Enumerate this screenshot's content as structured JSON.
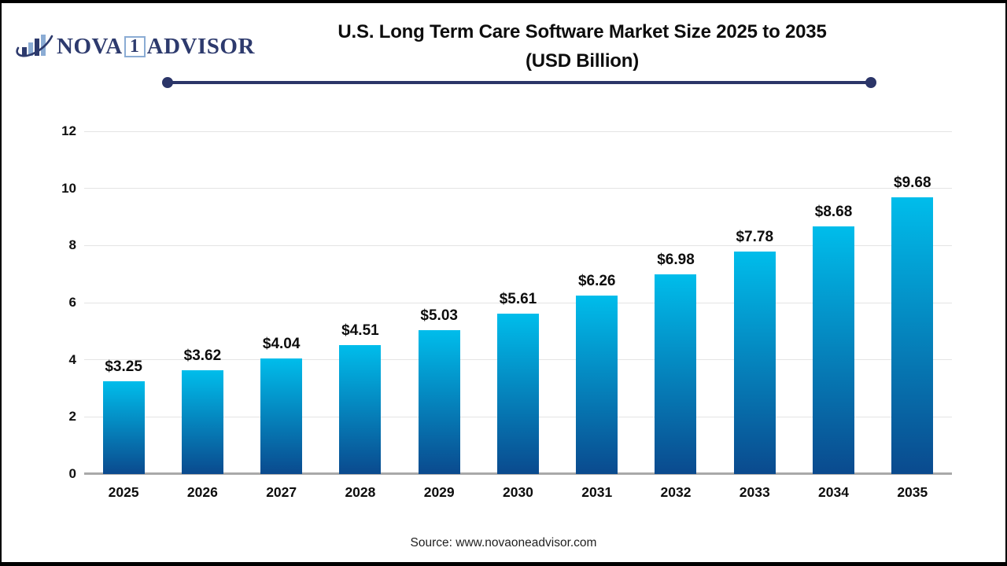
{
  "logo": {
    "icon": "bar-chart-swoosh-icon",
    "name_part1": "NOVA",
    "name_box": "1",
    "name_part2": "ADVISOR"
  },
  "title": {
    "line1": "U.S. Long Term Care Software Market Size 2025 to 2035",
    "line2": "(USD Billion)"
  },
  "source": "Source: www.novaoneadvisor.com",
  "colors": {
    "accent_navy": "#2b3568",
    "logo_navy": "#2d3a6d",
    "logo_lightblue": "#8bacd4",
    "bar_gradient_top": "#00bdeb",
    "bar_gradient_bottom": "#0a4a8e",
    "gridline": "#e4e4e4",
    "axis_baseline": "#a9a9a9"
  },
  "chart_data": {
    "type": "bar",
    "title": "U.S. Long Term Care Software Market Size 2025 to 2035 (USD Billion)",
    "categories": [
      "2025",
      "2026",
      "2027",
      "2028",
      "2029",
      "2030",
      "2031",
      "2032",
      "2033",
      "2034",
      "2035"
    ],
    "values": [
      3.25,
      3.62,
      4.04,
      4.51,
      5.03,
      5.61,
      6.26,
      6.98,
      7.78,
      8.68,
      9.68
    ],
    "labels": [
      "$3.25",
      "$3.62",
      "$4.04",
      "$4.51",
      "$5.03",
      "$5.61",
      "$6.26",
      "$6.98",
      "$7.78",
      "$8.68",
      "$9.68"
    ],
    "xlabel": "",
    "ylabel": "",
    "ylim": [
      0,
      12
    ],
    "yticks": [
      0,
      2,
      4,
      6,
      8,
      10,
      12
    ],
    "grid": true,
    "legend": "none",
    "units": "USD Billion"
  }
}
